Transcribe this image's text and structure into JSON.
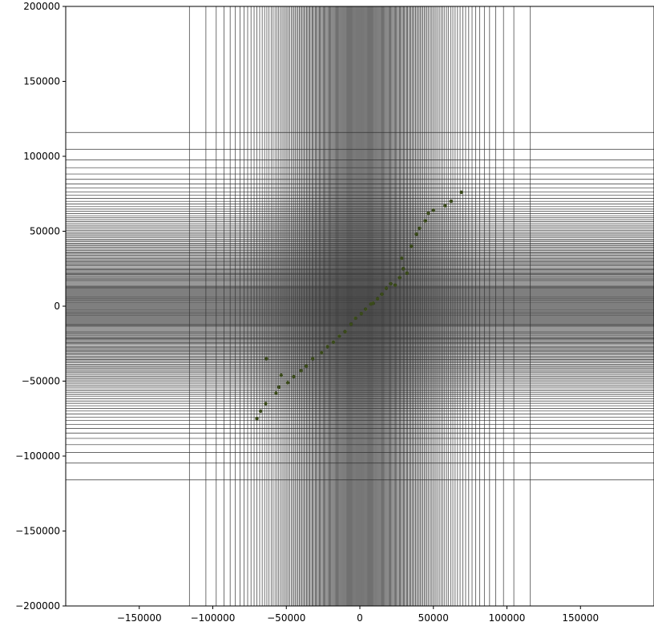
{
  "chart_data": {
    "type": "scatter",
    "title": "",
    "xlabel": "",
    "ylabel": "",
    "xlim": [
      -200000,
      200000
    ],
    "ylim": [
      -200000,
      200000
    ],
    "x_ticks": [
      -150000,
      -100000,
      -50000,
      0,
      50000,
      100000,
      150000
    ],
    "x_tick_labels": [
      "−150000",
      "−100000",
      "−50000",
      "0",
      "50000",
      "100000",
      "150000"
    ],
    "y_ticks": [
      -200000,
      -150000,
      -100000,
      -50000,
      0,
      50000,
      100000,
      150000,
      200000
    ],
    "y_tick_labels": [
      "−200000",
      "−150000",
      "−100000",
      "−50000",
      "0",
      "50000",
      "100000",
      "150000",
      "200000"
    ],
    "grid": true,
    "grid_spacing": "non-uniform, dense near the origin and sparse toward the edges",
    "grid_density_center": 0,
    "grid_density_sigma": 45000,
    "grid_line_count": 200,
    "marker_color": "#3a4a1a",
    "grid_color": "#333333",
    "series": [
      {
        "marker": "dot",
        "x": [
          -70000,
          -67500,
          -64000,
          -63500,
          -57000,
          -55000,
          -53500,
          -49000,
          -45000,
          -40000,
          -36500,
          -32000,
          -26000,
          -22000,
          -18000,
          -14000,
          -10000,
          -6000,
          -3000,
          1000,
          4000,
          7500,
          9000,
          12000,
          15000,
          18000,
          21000,
          24000,
          27000,
          28500,
          29500,
          32000,
          35000,
          38500,
          40500,
          44500,
          46500,
          50000,
          58000,
          62000,
          69000
        ],
        "y": [
          -75000,
          -70000,
          -65000,
          -35000,
          -58000,
          -54000,
          -46000,
          -51000,
          -47000,
          -43000,
          -40000,
          -35000,
          -31000,
          -27000,
          -24000,
          -20000,
          -17000,
          -12000,
          -8000,
          -5000,
          -2000,
          1500,
          2000,
          5000,
          8000,
          12000,
          15000,
          14000,
          19000,
          32000,
          25000,
          22000,
          40000,
          48000,
          52000,
          57000,
          62000,
          64000,
          67000,
          70000,
          76000
        ]
      }
    ]
  }
}
